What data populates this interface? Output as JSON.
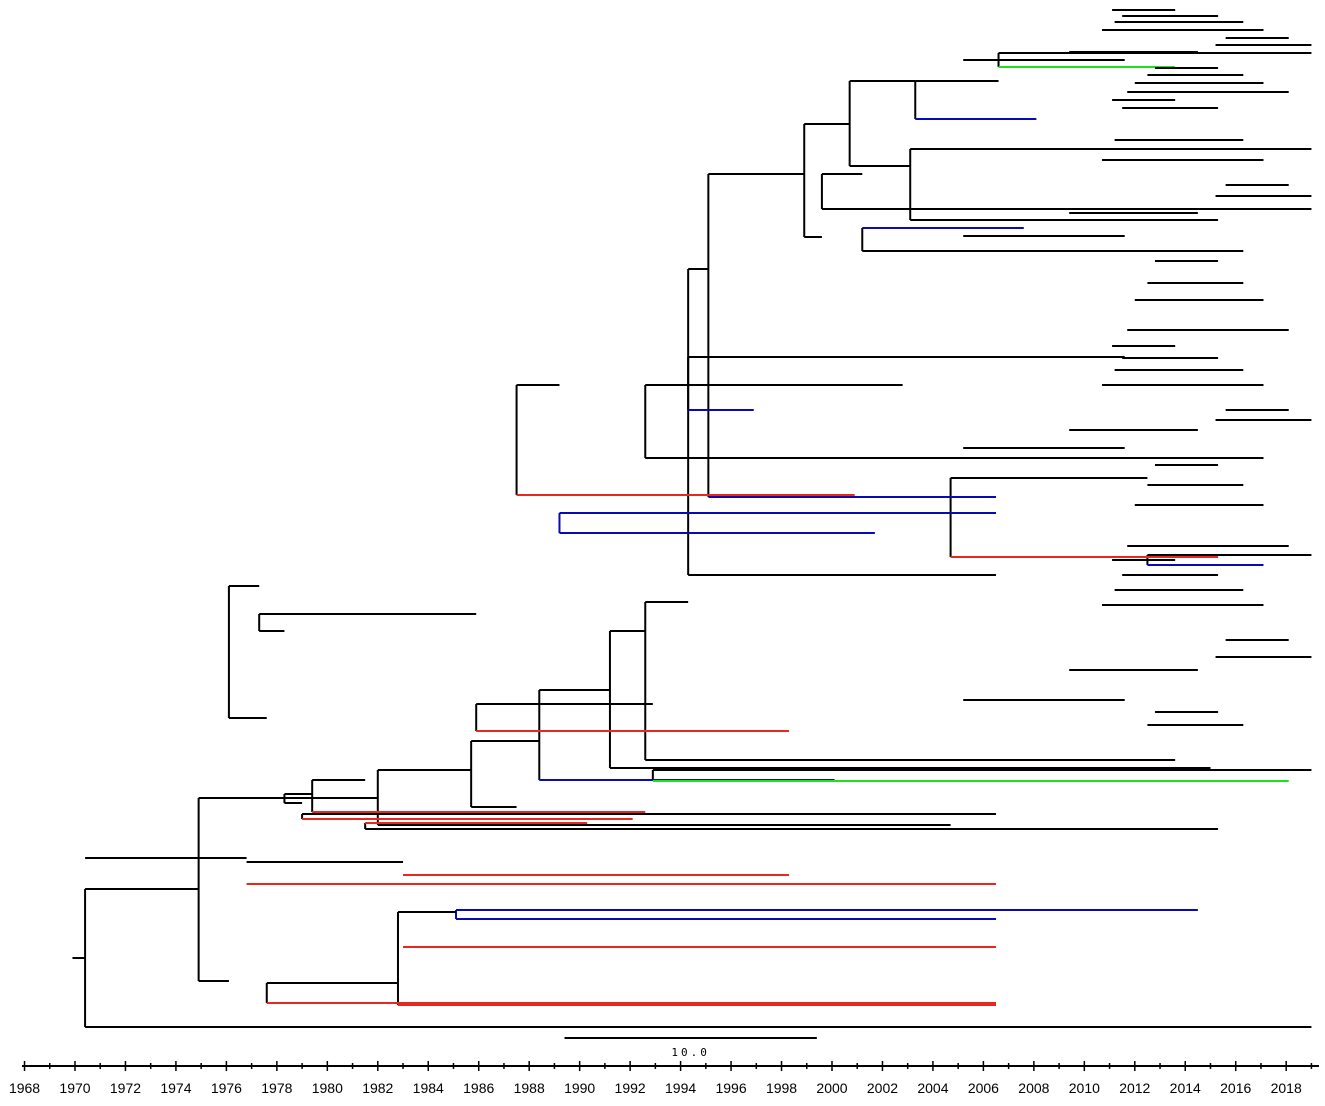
{
  "chart_data": {
    "type": "phylogenetic-tree",
    "title": "",
    "x_axis": {
      "label": "",
      "range": [
        1967.9,
        2019.3
      ],
      "minor_tick_step": 1,
      "tick_labels": [
        "1968",
        "1970",
        "1972",
        "1974",
        "1976",
        "1978",
        "1980",
        "1982",
        "1984",
        "1986",
        "1988",
        "1990",
        "1992",
        "1994",
        "1996",
        "1998",
        "2000",
        "2002",
        "2004",
        "2006",
        "2008",
        "2010",
        "2012",
        "2014",
        "2016",
        "2018"
      ]
    },
    "scale_bar": {
      "label": "10.0",
      "start_year": 1989.4,
      "end_year": 1999.4
    },
    "branch_colors": {
      "default": "#000000",
      "blue": "#0a0ab4",
      "red": "#e6281e",
      "green": "#19e619"
    },
    "root": {
      "year": 1970.4,
      "stem_start": 1969.9
    },
    "branches": [
      {
        "start": 1970.4,
        "end": 1974.9,
        "clade": "default"
      },
      {
        "start": 1970.4,
        "end": 2019.0,
        "clade": "default"
      },
      {
        "start": 1974.9,
        "end": 1982.0,
        "clade": "default"
      },
      {
        "start": 1974.9,
        "end": 1976.1,
        "clade": "default"
      },
      {
        "start": 1982.0,
        "end": 1985.7,
        "clade": "default"
      },
      {
        "start": 1982.0,
        "end": 2004.7,
        "clade": "default"
      },
      {
        "start": 1985.7,
        "end": 1988.4,
        "clade": "default"
      },
      {
        "start": 1985.7,
        "end": 1987.5,
        "clade": "default"
      },
      {
        "start": 1988.4,
        "end": 1991.2,
        "clade": "default"
      },
      {
        "start": 1988.4,
        "end": 2000.1,
        "clade": "blue"
      },
      {
        "start": 1991.2,
        "end": 1992.6,
        "clade": "default"
      },
      {
        "start": 1991.2,
        "end": 2015.0,
        "clade": "default"
      },
      {
        "start": 1992.6,
        "end": 1994.3,
        "clade": "default"
      },
      {
        "start": 1992.6,
        "end": 2013.6,
        "clade": "default"
      },
      {
        "start": 1994.3,
        "end": 1995.1,
        "clade": "default"
      },
      {
        "start": 1994.3,
        "end": 2006.5,
        "clade": "default"
      },
      {
        "start": 1995.1,
        "end": 1998.9,
        "clade": "default"
      },
      {
        "start": 1995.1,
        "end": 2006.5,
        "clade": "blue"
      },
      {
        "start": 1998.9,
        "end": 2000.7,
        "clade": "default"
      },
      {
        "start": 1998.9,
        "end": 1999.6,
        "clade": "default"
      },
      {
        "start": 2000.7,
        "end": 2003.3,
        "clade": "default"
      },
      {
        "start": 2000.7,
        "end": 2003.1,
        "clade": "default"
      },
      {
        "start": 2003.3,
        "end": 2006.6,
        "clade": "default"
      },
      {
        "start": 2003.3,
        "end": 2008.1,
        "clade": "blue"
      },
      {
        "start": 2006.6,
        "end": 2019.0,
        "clade": "default"
      },
      {
        "start": 2006.6,
        "end": 2013.6,
        "clade": "green"
      },
      {
        "start": 2003.1,
        "end": 2019.0,
        "clade": "default"
      },
      {
        "start": 2003.1,
        "end": 2015.3,
        "clade": "default"
      },
      {
        "start": 1999.6,
        "end": 2001.2,
        "clade": "default"
      },
      {
        "start": 1999.6,
        "end": 2019.0,
        "clade": "default"
      },
      {
        "start": 2001.2,
        "end": 2007.6,
        "clade": "blue"
      },
      {
        "start": 2001.2,
        "end": 2016.3,
        "clade": "default"
      },
      {
        "start": 1994.3,
        "end": 2011.6,
        "clade": "default"
      },
      {
        "start": 1994.3,
        "end": 1996.9,
        "clade": "blue"
      },
      {
        "start": 1992.6,
        "end": 2002.8,
        "clade": "default"
      },
      {
        "start": 1992.6,
        "end": 2017.1,
        "clade": "default"
      },
      {
        "start": 1987.5,
        "end": 1989.2,
        "clade": "default"
      },
      {
        "start": 1987.5,
        "end": 2000.9,
        "clade": "red"
      },
      {
        "start": 1989.2,
        "end": 2006.5,
        "clade": "blue"
      },
      {
        "start": 1989.2,
        "end": 2001.7,
        "clade": "blue"
      },
      {
        "start": 2004.7,
        "end": 2012.5,
        "clade": "default"
      },
      {
        "start": 2004.7,
        "end": 2015.3,
        "clade": "red"
      },
      {
        "start": 2012.5,
        "end": 2019.0,
        "clade": "default"
      },
      {
        "start": 2012.5,
        "end": 2017.1,
        "clade": "blue"
      },
      {
        "start": 1976.1,
        "end": 1977.3,
        "clade": "default"
      },
      {
        "start": 1976.1,
        "end": 1977.6,
        "clade": "default"
      },
      {
        "start": 1977.3,
        "end": 1985.9,
        "clade": "default"
      },
      {
        "start": 1977.3,
        "end": 1978.3,
        "clade": "default"
      },
      {
        "start": 1985.9,
        "end": 1992.9,
        "clade": "default"
      },
      {
        "start": 1985.9,
        "end": 1998.3,
        "clade": "red"
      },
      {
        "start": 1992.9,
        "end": 2019.0,
        "clade": "default"
      },
      {
        "start": 1992.9,
        "end": 2018.1,
        "clade": "green"
      },
      {
        "start": 1978.3,
        "end": 1979.4,
        "clade": "default"
      },
      {
        "start": 1978.3,
        "end": 1979.0,
        "clade": "default"
      },
      {
        "start": 1979.4,
        "end": 1981.5,
        "clade": "default"
      },
      {
        "start": 1979.4,
        "end": 1992.6,
        "clade": "red"
      },
      {
        "start": 1981.5,
        "end": 1990.3,
        "clade": "red"
      },
      {
        "start": 1981.5,
        "end": 2015.3,
        "clade": "default"
      },
      {
        "start": 1979.0,
        "end": 2006.5,
        "clade": "default"
      },
      {
        "start": 1979.0,
        "end": 1992.1,
        "clade": "red"
      },
      {
        "start": 1977.6,
        "end": 1982.8,
        "clade": "default"
      },
      {
        "start": 1977.6,
        "end": 2006.5,
        "clade": "red"
      },
      {
        "start": 1982.8,
        "end": 1985.1,
        "clade": "default"
      },
      {
        "start": 1982.8,
        "end": 2006.5,
        "clade": "red"
      },
      {
        "start": 1985.1,
        "end": 2014.5,
        "clade": "blue"
      },
      {
        "start": 1985.1,
        "end": 2006.5,
        "clade": "blue"
      },
      {
        "start": 1970.4,
        "end": 1976.8,
        "clade": "default"
      },
      {
        "start": 1976.8,
        "end": 2006.5,
        "clade": "red"
      },
      {
        "start": 1976.8,
        "end": 1983.0,
        "clade": "default"
      },
      {
        "start": 1983.0,
        "end": 1998.3,
        "clade": "red"
      },
      {
        "start": 1983.0,
        "end": 2006.5,
        "clade": "red"
      }
    ]
  }
}
